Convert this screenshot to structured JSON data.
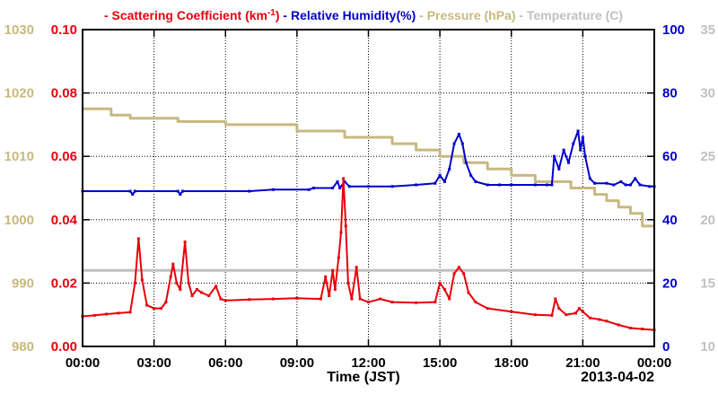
{
  "chart_data": {
    "type": "line",
    "legend": {
      "placement": "top",
      "items": [
        {
          "key": "scattering",
          "parts": [
            "- Scattering Coefficient (km",
            "-1",
            ")"
          ],
          "color": "#e8000b"
        },
        {
          "key": "humidity",
          "parts": [
            "- Relative Humidity(%)"
          ],
          "color": "#0000cc"
        },
        {
          "key": "pressure",
          "parts": [
            "- Pressure (hPa)"
          ],
          "color": "#c8b880"
        },
        {
          "key": "temperature",
          "parts": [
            "- Temperature (C)"
          ],
          "color": "#c0c0c0"
        }
      ]
    },
    "xlabel": "Time (JST)",
    "date_label": "2013-04-02",
    "x_range_hours": [
      0,
      24
    ],
    "x_ticks": [
      {
        "h": 0,
        "label": "00:00"
      },
      {
        "h": 3,
        "label": "03:00"
      },
      {
        "h": 6,
        "label": "06:00"
      },
      {
        "h": 9,
        "label": "09:00"
      },
      {
        "h": 12,
        "label": "12:00"
      },
      {
        "h": 15,
        "label": "15:00"
      },
      {
        "h": 18,
        "label": "18:00"
      },
      {
        "h": 21,
        "label": "21:00"
      },
      {
        "h": 24,
        "label": "00:00"
      }
    ],
    "grid": true,
    "axes": {
      "scattering": {
        "side": "left-inner",
        "range": [
          0,
          0.1
        ],
        "color": "#e8000b",
        "ticks": [
          "0.00",
          "0.02",
          "0.04",
          "0.06",
          "0.08",
          "0.10"
        ]
      },
      "pressure": {
        "side": "left-outer",
        "range": [
          980,
          1030
        ],
        "color": "#c8b880",
        "ticks": [
          "980",
          "990",
          "1000",
          "1010",
          "1020",
          "1030"
        ]
      },
      "humidity": {
        "side": "right-inner",
        "range": [
          0,
          100
        ],
        "color": "#0000cc",
        "ticks": [
          "0",
          "20",
          "40",
          "60",
          "80",
          "100"
        ]
      },
      "temperature": {
        "side": "right-outer",
        "range": [
          10,
          35
        ],
        "color": "#c0c0c0",
        "ticks": [
          "10",
          "15",
          "20",
          "25",
          "30",
          "35"
        ]
      }
    },
    "series": [
      {
        "name": "Scattering Coefficient",
        "axis": "scattering",
        "color": "#e8000b",
        "points": [
          [
            0,
            0.0095
          ],
          [
            0.5,
            0.0098
          ],
          [
            1.0,
            0.0102
          ],
          [
            1.5,
            0.0105
          ],
          [
            2.0,
            0.0108
          ],
          [
            2.2,
            0.02
          ],
          [
            2.35,
            0.034
          ],
          [
            2.5,
            0.021
          ],
          [
            2.7,
            0.013
          ],
          [
            3.0,
            0.012
          ],
          [
            3.3,
            0.012
          ],
          [
            3.5,
            0.014
          ],
          [
            3.7,
            0.022
          ],
          [
            3.8,
            0.026
          ],
          [
            3.95,
            0.02
          ],
          [
            4.1,
            0.018
          ],
          [
            4.3,
            0.033
          ],
          [
            4.45,
            0.02
          ],
          [
            4.6,
            0.016
          ],
          [
            4.8,
            0.018
          ],
          [
            5.0,
            0.017
          ],
          [
            5.3,
            0.016
          ],
          [
            5.6,
            0.019
          ],
          [
            5.8,
            0.015
          ],
          [
            6.0,
            0.0145
          ],
          [
            7.0,
            0.0148
          ],
          [
            8.0,
            0.015
          ],
          [
            9.0,
            0.0152
          ],
          [
            10.0,
            0.015
          ],
          [
            10.2,
            0.022
          ],
          [
            10.35,
            0.016
          ],
          [
            10.5,
            0.024
          ],
          [
            10.6,
            0.018
          ],
          [
            10.75,
            0.028
          ],
          [
            10.85,
            0.036
          ],
          [
            10.95,
            0.053
          ],
          [
            11.05,
            0.038
          ],
          [
            11.15,
            0.02
          ],
          [
            11.3,
            0.015
          ],
          [
            11.5,
            0.025
          ],
          [
            11.65,
            0.015
          ],
          [
            12.0,
            0.014
          ],
          [
            12.5,
            0.015
          ],
          [
            13.0,
            0.014
          ],
          [
            14.0,
            0.0138
          ],
          [
            14.8,
            0.014
          ],
          [
            15.0,
            0.02
          ],
          [
            15.2,
            0.018
          ],
          [
            15.4,
            0.015
          ],
          [
            15.6,
            0.023
          ],
          [
            15.8,
            0.025
          ],
          [
            16.0,
            0.023
          ],
          [
            16.2,
            0.017
          ],
          [
            16.5,
            0.014
          ],
          [
            17.0,
            0.012
          ],
          [
            18.0,
            0.011
          ],
          [
            19.0,
            0.01
          ],
          [
            19.7,
            0.0098
          ],
          [
            19.85,
            0.015
          ],
          [
            20.0,
            0.012
          ],
          [
            20.3,
            0.01
          ],
          [
            20.7,
            0.0105
          ],
          [
            20.85,
            0.012
          ],
          [
            21.0,
            0.011
          ],
          [
            21.3,
            0.009
          ],
          [
            21.7,
            0.0085
          ],
          [
            22.0,
            0.008
          ],
          [
            22.5,
            0.0068
          ],
          [
            23.0,
            0.0058
          ],
          [
            23.5,
            0.0055
          ],
          [
            24.0,
            0.0052
          ]
        ]
      },
      {
        "name": "Relative Humidity",
        "axis": "humidity",
        "color": "#0000cc",
        "points": [
          [
            0,
            49
          ],
          [
            2.0,
            49
          ],
          [
            2.1,
            48
          ],
          [
            2.2,
            49
          ],
          [
            4.0,
            49
          ],
          [
            4.1,
            48
          ],
          [
            4.2,
            49
          ],
          [
            7.0,
            49
          ],
          [
            8.0,
            49.5
          ],
          [
            9.5,
            49.5
          ],
          [
            9.7,
            50
          ],
          [
            10.5,
            50
          ],
          [
            10.7,
            52
          ],
          [
            10.8,
            50
          ],
          [
            11.0,
            52
          ],
          [
            11.2,
            50.5
          ],
          [
            12.0,
            50.5
          ],
          [
            13.0,
            50.5
          ],
          [
            14.0,
            51
          ],
          [
            14.8,
            51.5
          ],
          [
            15.0,
            54
          ],
          [
            15.2,
            52
          ],
          [
            15.4,
            56
          ],
          [
            15.6,
            64
          ],
          [
            15.8,
            67
          ],
          [
            15.95,
            64
          ],
          [
            16.1,
            58
          ],
          [
            16.3,
            54
          ],
          [
            16.5,
            52
          ],
          [
            17.0,
            51
          ],
          [
            17.5,
            51
          ],
          [
            18.0,
            51
          ],
          [
            19.0,
            51
          ],
          [
            19.5,
            51
          ],
          [
            19.7,
            51
          ],
          [
            19.8,
            60
          ],
          [
            20.0,
            56
          ],
          [
            20.2,
            62
          ],
          [
            20.4,
            58
          ],
          [
            20.6,
            64
          ],
          [
            20.8,
            68
          ],
          [
            20.9,
            62
          ],
          [
            21.0,
            66
          ],
          [
            21.1,
            60
          ],
          [
            21.3,
            53
          ],
          [
            21.5,
            51.5
          ],
          [
            22.0,
            51.5
          ],
          [
            22.3,
            51
          ],
          [
            22.6,
            52
          ],
          [
            22.8,
            51
          ],
          [
            23.0,
            51
          ],
          [
            23.2,
            53
          ],
          [
            23.4,
            51
          ],
          [
            23.8,
            50.5
          ],
          [
            24.0,
            50.5
          ]
        ]
      },
      {
        "name": "Pressure",
        "axis": "pressure",
        "color": "#c8b880",
        "points": [
          [
            0,
            1017.5
          ],
          [
            1.2,
            1017.5
          ],
          [
            1.2,
            1016.5
          ],
          [
            2.0,
            1016.5
          ],
          [
            2.0,
            1016
          ],
          [
            4.0,
            1016
          ],
          [
            4.0,
            1015.5
          ],
          [
            6.0,
            1015.5
          ],
          [
            6.0,
            1015
          ],
          [
            9.0,
            1015
          ],
          [
            9.0,
            1014
          ],
          [
            11.0,
            1014
          ],
          [
            11.0,
            1013
          ],
          [
            13.0,
            1013
          ],
          [
            13.0,
            1012
          ],
          [
            14.0,
            1012
          ],
          [
            14.0,
            1011
          ],
          [
            15.0,
            1011
          ],
          [
            15.0,
            1010
          ],
          [
            16.0,
            1010
          ],
          [
            16.0,
            1009
          ],
          [
            17.0,
            1009
          ],
          [
            17.0,
            1008
          ],
          [
            18.0,
            1008
          ],
          [
            18.0,
            1007
          ],
          [
            19.0,
            1007
          ],
          [
            19.0,
            1006
          ],
          [
            20.5,
            1006
          ],
          [
            20.5,
            1005
          ],
          [
            21.5,
            1005
          ],
          [
            21.5,
            1004
          ],
          [
            22.0,
            1004
          ],
          [
            22.0,
            1003
          ],
          [
            22.5,
            1003
          ],
          [
            22.5,
            1002
          ],
          [
            23.0,
            1002
          ],
          [
            23.0,
            1001
          ],
          [
            23.5,
            1001
          ],
          [
            23.5,
            999
          ],
          [
            24.0,
            999
          ]
        ]
      },
      {
        "name": "Temperature",
        "axis": "temperature",
        "color": "#c0c0c0",
        "points": [
          [
            0,
            16.0
          ],
          [
            24,
            16.0
          ]
        ]
      }
    ]
  }
}
